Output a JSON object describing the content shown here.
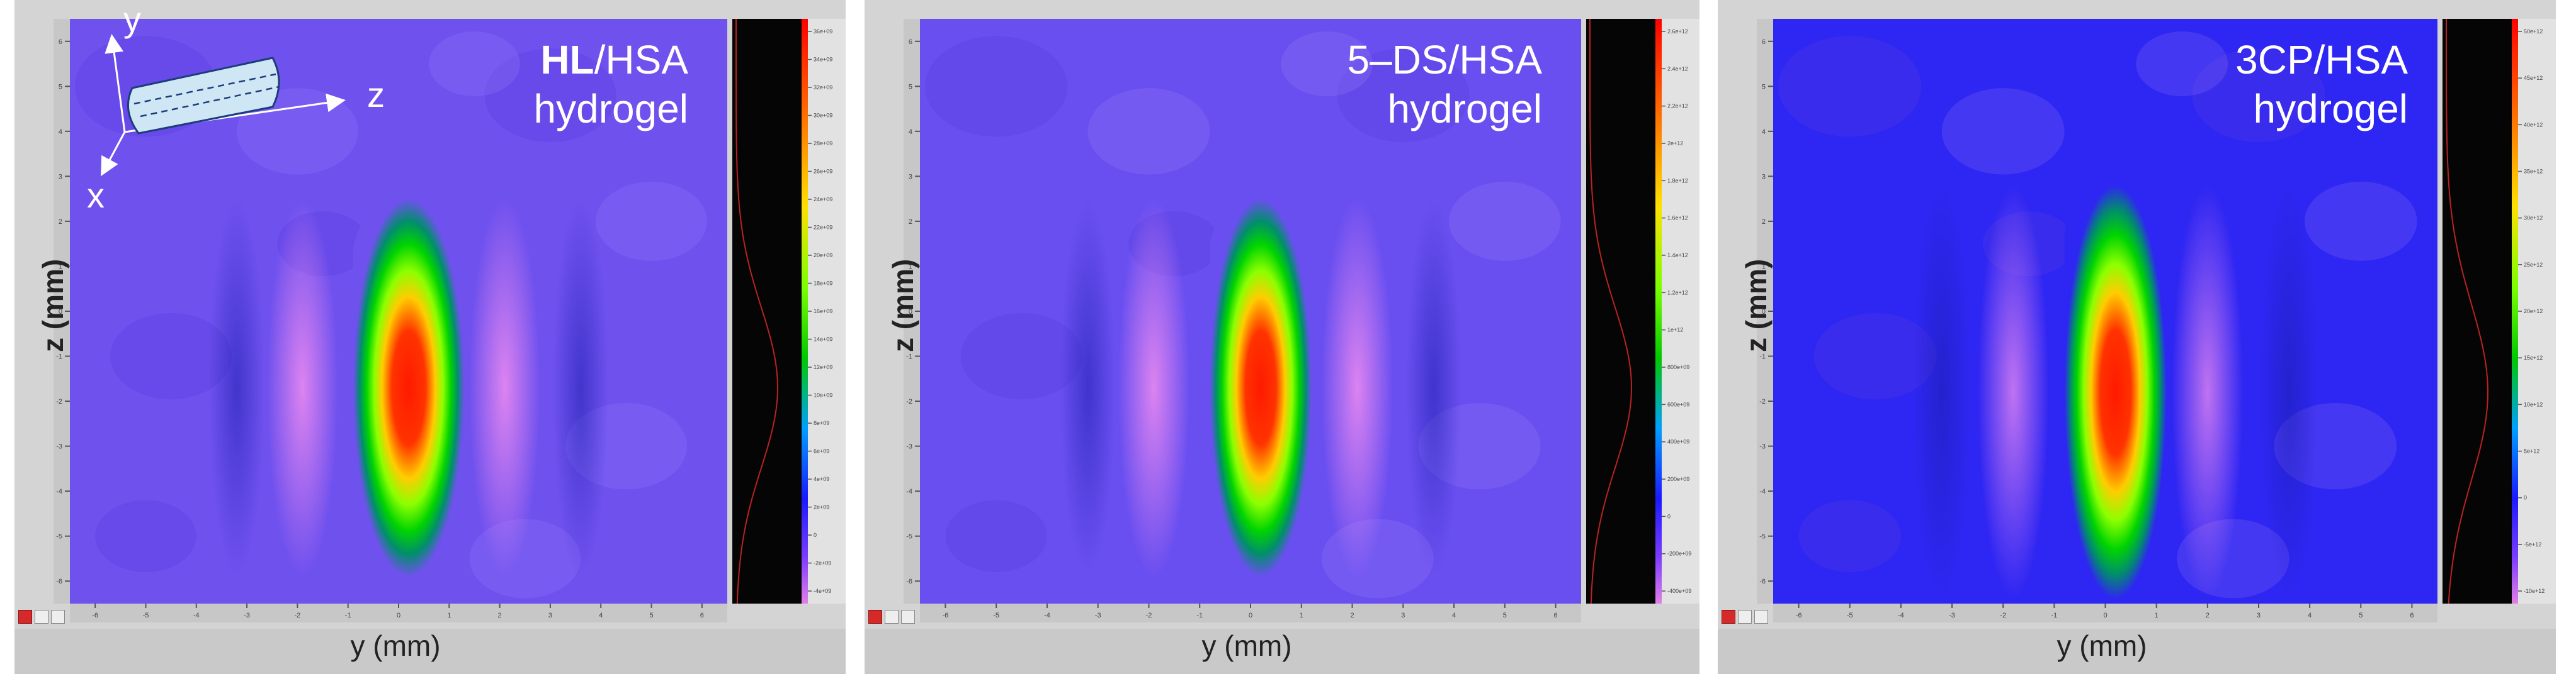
{
  "chart_data": [
    {
      "type": "heatmap",
      "title_bold": "HL",
      "title_rest": "/HSA",
      "title_line2": "hydrogel",
      "xlabel": "y (mm)",
      "ylabel": "z (mm)",
      "xlim": [
        -6.5,
        6.5
      ],
      "ylim": [
        -6.5,
        6.5
      ],
      "x_ticks": [
        -6,
        -5,
        -4,
        -3,
        -2,
        -1,
        0,
        1,
        2,
        3,
        4,
        5,
        6
      ],
      "y_ticks": [
        6,
        5,
        4,
        3,
        2,
        1,
        0,
        -1,
        -2,
        -3,
        -4,
        -5,
        -6
      ],
      "hot_spot": {
        "y_center": 0.2,
        "z_center": -1.7,
        "y_halfwidth": 1.1,
        "z_halfheight": 4.2
      },
      "side_bands_y": [
        -1.9,
        2.1
      ],
      "background_color": "#6f51ee",
      "colorbar_ticks": [
        "36e+09",
        "34e+09",
        "32e+09",
        "30e+09",
        "28e+09",
        "26e+09",
        "24e+09",
        "22e+09",
        "20e+09",
        "18e+09",
        "16e+09",
        "14e+09",
        "12e+09",
        "10e+09",
        "8e+09",
        "6e+09",
        "4e+09",
        "2e+09",
        "0",
        "-2e+09",
        "-4e+09"
      ],
      "inset_axes": {
        "y": "y",
        "z": "z",
        "x": "x"
      }
    },
    {
      "type": "heatmap",
      "title_bold": "",
      "title_rest": "5–DS/HSA",
      "title_line2": "hydrogel",
      "xlabel": "y (mm)",
      "ylabel": "z (mm)",
      "xlim": [
        -6.5,
        6.5
      ],
      "ylim": [
        -6.5,
        6.5
      ],
      "x_ticks": [
        -6,
        -5,
        -4,
        -3,
        -2,
        -1,
        0,
        1,
        2,
        3,
        4,
        5,
        6
      ],
      "y_ticks": [
        6,
        5,
        4,
        3,
        2,
        1,
        0,
        -1,
        -2,
        -3,
        -4,
        -5,
        -6
      ],
      "hot_spot": {
        "y_center": 0.2,
        "z_center": -1.7,
        "y_halfwidth": 1.0,
        "z_halfheight": 4.2
      },
      "side_bands_y": [
        -1.9,
        2.1
      ],
      "background_color": "#6a4ff0",
      "colorbar_ticks": [
        "2.6e+12",
        "2.4e+12",
        "2.2e+12",
        "2e+12",
        "1.8e+12",
        "1.6e+12",
        "1.4e+12",
        "1.2e+12",
        "1e+12",
        "800e+09",
        "600e+09",
        "400e+09",
        "200e+09",
        "0",
        "-200e+09",
        "-400e+09"
      ]
    },
    {
      "type": "heatmap",
      "title_bold": "",
      "title_rest": "3CP/HSA",
      "title_line2": "hydrogel",
      "xlabel": "y (mm)",
      "ylabel": "z (mm)",
      "xlim": [
        -6.5,
        6.5
      ],
      "ylim": [
        -6.5,
        6.5
      ],
      "x_ticks": [
        -6,
        -5,
        -4,
        -3,
        -2,
        -1,
        0,
        1,
        2,
        3,
        4,
        5,
        6
      ],
      "y_ticks": [
        6,
        5,
        4,
        3,
        2,
        1,
        0,
        -1,
        -2,
        -3,
        -4,
        -5,
        -6
      ],
      "hot_spot": {
        "y_center": 0.2,
        "z_center": -1.8,
        "y_halfwidth": 1.0,
        "z_halfheight": 4.6
      },
      "side_bands_y": [
        -1.8,
        2.0
      ],
      "background_color": "#2e26f2",
      "colorbar_ticks": [
        "50e+12",
        "45e+12",
        "40e+12",
        "35e+12",
        "30e+12",
        "25e+12",
        "20e+12",
        "15e+12",
        "10e+12",
        "5e+12",
        "0",
        "-5e+12",
        "-10e+12"
      ]
    }
  ]
}
